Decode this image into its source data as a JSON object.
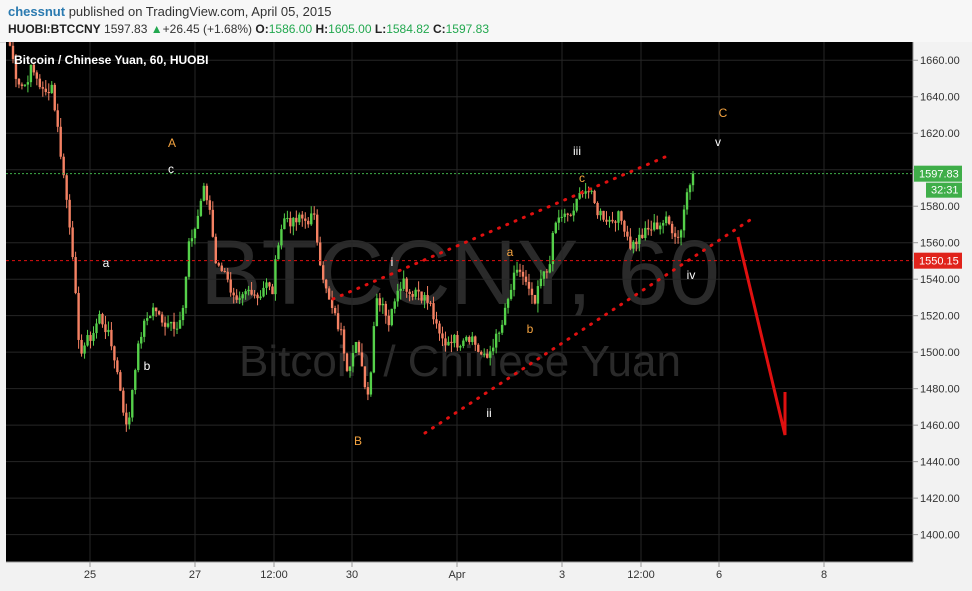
{
  "header": {
    "author": "chessnut",
    "published_text": "published on TradingView.com, April 05, 2015",
    "symbol": "HUOBI:BTCCNY",
    "price": "1597.83",
    "change_arrow": "▲",
    "change": "+26.45 (+1.68%)",
    "open_label": "O:",
    "open": "1586.00",
    "high_label": "H:",
    "high": "1605.00",
    "low_label": "L:",
    "low": "1584.82",
    "close_label": "C:",
    "close": "1597.83"
  },
  "chart_data": {
    "type": "candlestick",
    "title": "Bitcoin / Chinese Yuan, 60, HUOBI",
    "watermark_symbol": "BTCCNY, 60",
    "watermark_name": "Bitcoin / Chinese Yuan",
    "ylim": [
      1385,
      1670
    ],
    "y_ticks": [
      "1660.00",
      "1640.00",
      "1620.00",
      "1600.00",
      "1580.00",
      "1560.00",
      "1540.00",
      "1520.00",
      "1500.00",
      "1480.00",
      "1460.00",
      "1440.00",
      "1420.00",
      "1400.00"
    ],
    "x_ticks": [
      "25",
      "27",
      "12:00",
      "30",
      "Apr",
      "3",
      "12:00",
      "6",
      "8"
    ],
    "last_price_label": "1597.83",
    "countdown_label": "32:31",
    "horizontal_line_label": "1550.15",
    "horizontal_line_value": 1550.15,
    "colors": {
      "up": "#55d04a",
      "down": "#f48163",
      "background": "#000000",
      "axis_bg": "#f2f2f2",
      "dotted": "#e01010",
      "label_orange": "#f4a340",
      "label_white": "#ffffff"
    },
    "close_path": [
      1668,
      1650,
      1645,
      1655,
      1650,
      1640,
      1648,
      1620,
      1590,
      1560,
      1500,
      1505,
      1510,
      1520,
      1512,
      1500,
      1480,
      1455,
      1490,
      1510,
      1520,
      1525,
      1515,
      1518,
      1515,
      1520,
      1560,
      1570,
      1590,
      1578,
      1545,
      1548,
      1530,
      1525,
      1532,
      1535,
      1530,
      1538,
      1532,
      1565,
      1575,
      1570,
      1573,
      1572,
      1575,
      1550,
      1530,
      1520,
      1510,
      1490,
      1508,
      1490,
      1475,
      1530,
      1528,
      1515,
      1535,
      1540,
      1532,
      1535,
      1530,
      1525,
      1510,
      1505,
      1508,
      1505,
      1510,
      1508,
      1500,
      1495,
      1505,
      1510,
      1525,
      1540,
      1545,
      1535,
      1525,
      1540,
      1545,
      1570,
      1575,
      1573,
      1580,
      1590,
      1588,
      1578,
      1575,
      1572,
      1575,
      1570,
      1558,
      1562,
      1565,
      1568,
      1570,
      1572,
      1568,
      1562,
      1586,
      1597.83
    ],
    "wave_labels": [
      {
        "text": "A",
        "color": "orange"
      },
      {
        "text": "c",
        "color": "white"
      },
      {
        "text": "a",
        "color": "white"
      },
      {
        "text": "b",
        "color": "white"
      },
      {
        "text": "B",
        "color": "orange"
      },
      {
        "text": "i",
        "color": "white"
      },
      {
        "text": "ii",
        "color": "white"
      },
      {
        "text": "a",
        "color": "orange"
      },
      {
        "text": "b",
        "color": "orange"
      },
      {
        "text": "iii",
        "color": "white"
      },
      {
        "text": "c",
        "color": "orange"
      },
      {
        "text": "iv",
        "color": "white"
      },
      {
        "text": "v",
        "color": "white"
      },
      {
        "text": "C",
        "color": "orange"
      }
    ]
  }
}
